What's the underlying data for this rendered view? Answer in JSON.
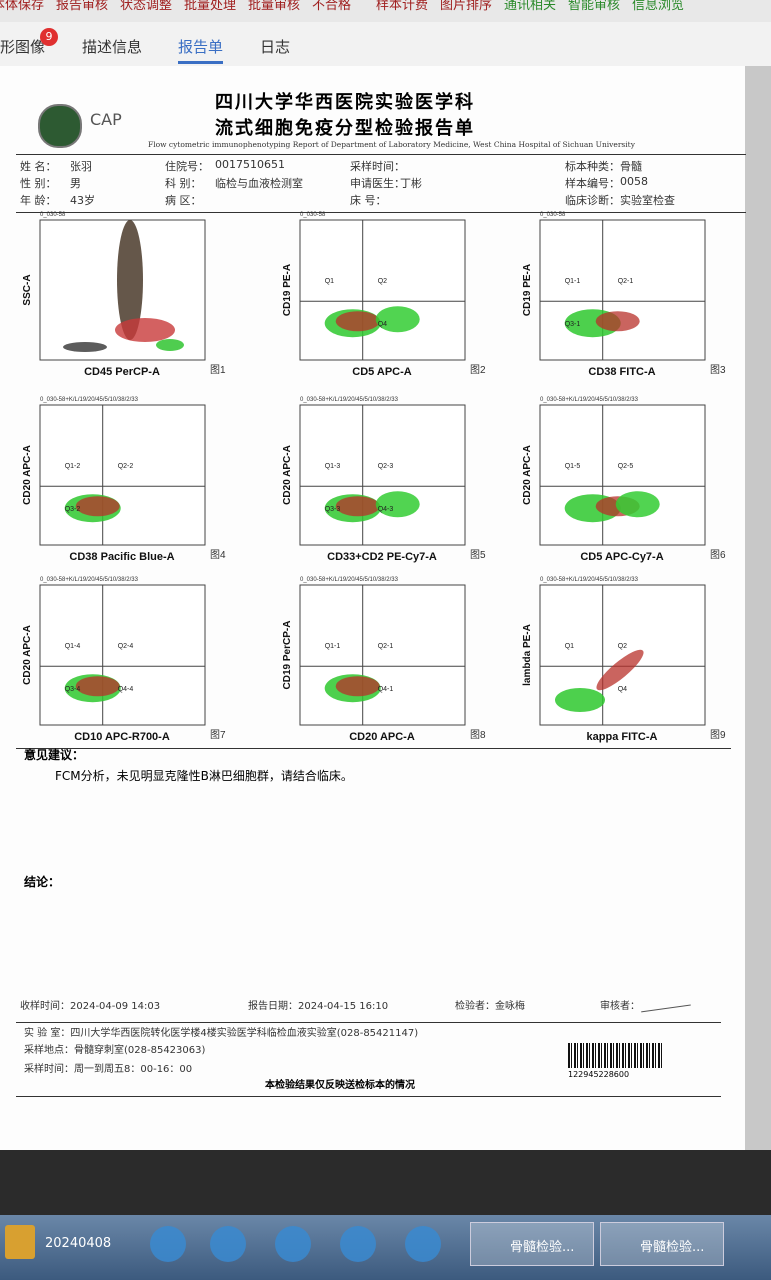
{
  "toolbar": [
    "本体保存",
    "报告审核",
    "状态调整",
    "批量处理",
    "批量审核",
    "不合格",
    "样本计费",
    "图片排序",
    "通讯相关",
    "智能审核",
    "信息浏览"
  ],
  "tabs": [
    {
      "label": "形图像",
      "badge": 9
    },
    {
      "label": "描述信息"
    },
    {
      "label": "报告单"
    },
    {
      "label": "日志"
    }
  ],
  "report": {
    "logo": "CAP",
    "title": "四川大学华西医院实验医学科",
    "subtitle": "流式细胞免疫分型检验报告单",
    "english": "Flow cytometric immunophenotyping Report of Department of Laboratory Medicine, West China Hospital of Sichuan University",
    "patient_info": [
      [
        {
          "label": "姓 名：",
          "value": "张羽"
        },
        {
          "label": "性 别：",
          "value": "男"
        },
        {
          "label": "年 龄：",
          "value": "43岁"
        }
      ],
      [
        {
          "label": "住院号：",
          "value": "0017510651"
        },
        {
          "label": "科 别：",
          "value": "临检与血液检测室"
        },
        {
          "label": "病 区："
        }
      ],
      [
        {
          "label": "采样时间："
        },
        {
          "label": "申请医生：",
          "value": "丁彬"
        },
        {
          "label": "床 号："
        }
      ],
      [
        {
          "label": "标本种类：",
          "value": "骨髓"
        },
        {
          "label": "样本编号：",
          "value": "0058"
        },
        {
          "label": "临床诊断：",
          "value": "实验室检查"
        }
      ]
    ],
    "plots": [
      {
        "header": "0_030-58",
        "xlabel": "CD45 PerCP-A",
        "ylabel": "SSC-A",
        "fig": "图1"
      },
      {
        "header": "0_030-58",
        "xlabel": "CD5 APC-A",
        "ylabel": "CD19 PE-A",
        "fig": "图2",
        "quadrants": [
          "Q1",
          "Q2",
          "Q4"
        ]
      },
      {
        "header": "0_030-58",
        "xlabel": "CD38 FITC-A",
        "ylabel": "CD19 PE-A",
        "fig": "图3",
        "quadrants": [
          "Q1-1",
          "Q2-1",
          "Q3-1"
        ]
      },
      {
        "header": "0_030-58+K/L/19/20/45/5/10/38/2/33",
        "xlabel": "CD38 Pacific Blue-A",
        "ylabel": "CD20 APC-A",
        "fig": "图4",
        "quadrants": [
          "Q1-2",
          "Q2-2",
          "Q3-2"
        ]
      },
      {
        "header": "0_030-58+K/L/19/20/45/5/10/38/2/33",
        "xlabel": "CD33+CD2 PE-Cy7-A",
        "ylabel": "CD20 APC-A",
        "fig": "图5",
        "quadrants": [
          "Q1-3",
          "Q2-3",
          "Q3-3",
          "Q4-3"
        ]
      },
      {
        "header": "0_030-58+K/L/19/20/45/5/10/38/2/33",
        "xlabel": "CD5 APC-Cy7-A",
        "ylabel": "CD20 APC-A",
        "fig": "图6",
        "quadrants": [
          "Q1-5",
          "Q2-5"
        ]
      },
      {
        "header": "0_030-58+K/L/19/20/45/5/10/38/2/33",
        "xlabel": "CD10 APC-R700-A",
        "ylabel": "CD20 APC-A",
        "fig": "图7",
        "quadrants": [
          "Q1-4",
          "Q2-4",
          "Q3-4",
          "Q4-4"
        ]
      },
      {
        "header": "0_030-58+K/L/19/20/45/5/10/38/2/33",
        "xlabel": "CD20 APC-A",
        "ylabel": "CD19 PerCP-A",
        "fig": "图8",
        "quadrants": [
          "Q1-1",
          "Q2-1",
          "Q4-1"
        ]
      },
      {
        "header": "0_030-58+K/L/19/20/45/5/10/38/2/33",
        "xlabel": "kappa FITC-A",
        "ylabel": "lambda PE-A",
        "fig": "图9",
        "quadrants": [
          "Q1",
          "Q2",
          "Q4"
        ]
      }
    ],
    "opinion_label": "意见建议：",
    "opinion": "FCM分析，未见明显克隆性B淋巴细胞群，请结合临床。",
    "conclusion_label": "结论：",
    "received": "收样时间：2024-04-09 14:03",
    "report_date": "报告日期：2024-04-15 16:10",
    "tester": "检验者：金咏梅",
    "reviewer": "审核者：",
    "lab": "实 验 室：四川大学华西医院转化医学楼4楼实验医学科临检血液实验室(028-85421147)",
    "site": "采样地点：骨髓穿刺室(028-85423063)",
    "hours": "采样时间：周一到周五8：00-16：00",
    "barcode": "122945228600",
    "notice": "本检验结果仅反映送检标本的情况"
  },
  "taskbar": [
    "20240408",
    "骨髓检验...",
    "骨髓检验..."
  ]
}
